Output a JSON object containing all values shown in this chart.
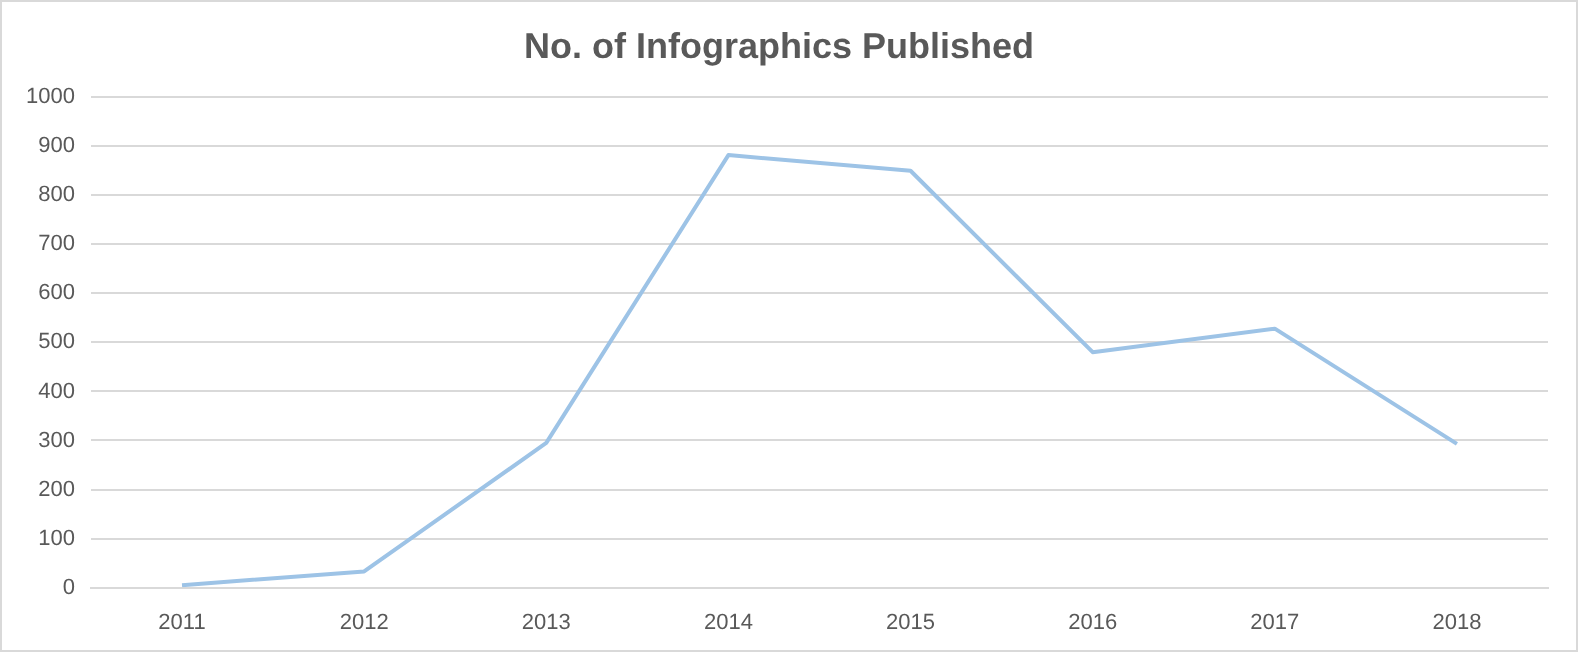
{
  "chart_data": {
    "type": "line",
    "title": "No. of Infographics Published",
    "categories": [
      "2011",
      "2012",
      "2013",
      "2014",
      "2015",
      "2016",
      "2017",
      "2018"
    ],
    "series": [
      {
        "color": "#9dc3e6",
        "values": [
          5,
          33,
          295,
          882,
          850,
          480,
          528,
          293
        ]
      }
    ],
    "ylim": [
      0,
      1000
    ],
    "yticks": [
      0,
      100,
      200,
      300,
      400,
      500,
      600,
      700,
      800,
      900,
      1000
    ],
    "grid": "y",
    "legend": false,
    "marker": "none"
  }
}
